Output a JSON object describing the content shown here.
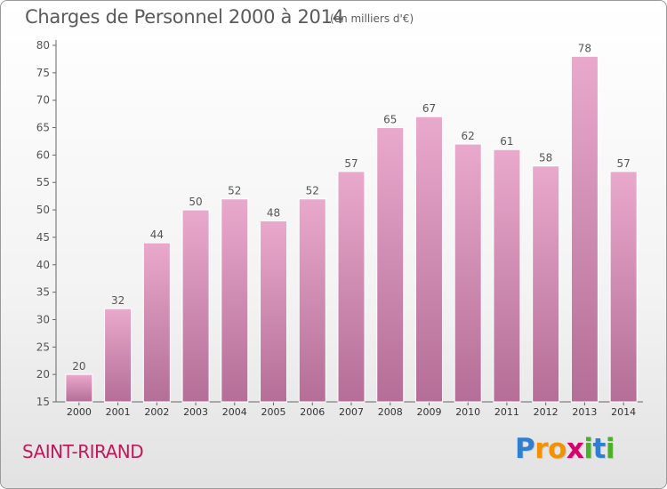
{
  "header": {
    "title": "Charges de Personnel 2000 à 2014",
    "subtitle": "(en milliers d'€)"
  },
  "footer": {
    "commune": "SAINT-RIRAND",
    "logo_letters": [
      {
        "char": "P",
        "color": "#2e7fd0"
      },
      {
        "char": "r",
        "color": "#f39200"
      },
      {
        "char": "o",
        "color": "#f39200"
      },
      {
        "char": "x",
        "color": "#d8006c"
      },
      {
        "char": "i",
        "color": "#4caf2a"
      },
      {
        "char": "t",
        "color": "#2e7fd0"
      },
      {
        "char": "i",
        "color": "#4caf2a"
      }
    ]
  },
  "chart_data": {
    "type": "bar",
    "categories": [
      "2000",
      "2001",
      "2002",
      "2003",
      "2004",
      "2005",
      "2006",
      "2007",
      "2008",
      "2009",
      "2010",
      "2011",
      "2012",
      "2013",
      "2014"
    ],
    "values": [
      20,
      32,
      44,
      50,
      52,
      48,
      52,
      57,
      65,
      67,
      62,
      61,
      58,
      78,
      57
    ],
    "data_labels": [
      "20",
      "32",
      "44",
      "50",
      "52",
      "48",
      "52",
      "57",
      "65",
      "67",
      "62",
      "61",
      "58",
      "78",
      "57"
    ],
    "yticks": [
      "15",
      "20",
      "25",
      "30",
      "35",
      "40",
      "45",
      "50",
      "55",
      "60",
      "65",
      "70",
      "75",
      "80"
    ],
    "ylim": [
      15,
      80
    ],
    "bar_color": "#d98cb3",
    "grid": false
  }
}
